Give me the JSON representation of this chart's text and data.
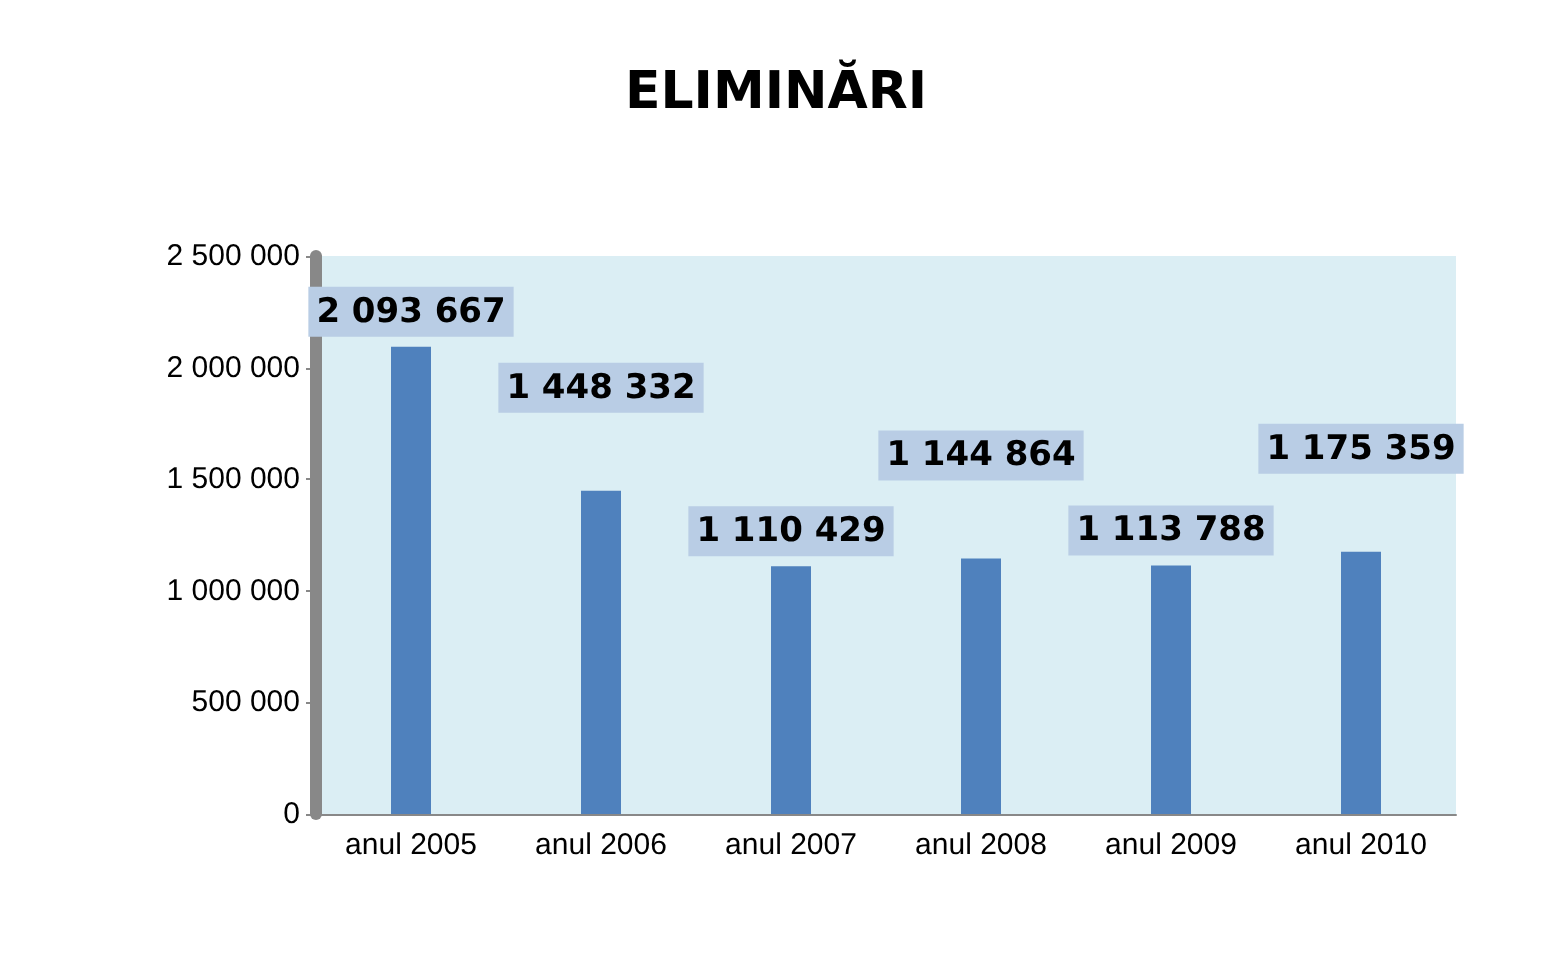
{
  "chart_data": {
    "type": "bar",
    "title": "ELIMINĂRI",
    "categories": [
      "anul 2005",
      "anul 2006",
      "anul 2007",
      "anul 2008",
      "anul 2009",
      "anul 2010"
    ],
    "values": [
      2093667,
      1448332,
      1110429,
      1144864,
      1113788,
      1175359
    ],
    "value_labels": [
      "2 093 667",
      "1 448 332",
      "1 110 429",
      "1 144 864",
      "1 113 788",
      "1 175 359"
    ],
    "color": "#4f81bd",
    "ylim": [
      0,
      2500000
    ],
    "yticks": [
      {
        "value": 0,
        "label": "0"
      },
      {
        "value": 500000,
        "label": "500 000"
      },
      {
        "value": 1000000,
        "label": "1 000 000"
      },
      {
        "value": 1500000,
        "label": "1 500 000"
      },
      {
        "value": 2000000,
        "label": "2 000 000"
      },
      {
        "value": 2500000,
        "label": "2 500 000"
      }
    ],
    "grid": false
  }
}
